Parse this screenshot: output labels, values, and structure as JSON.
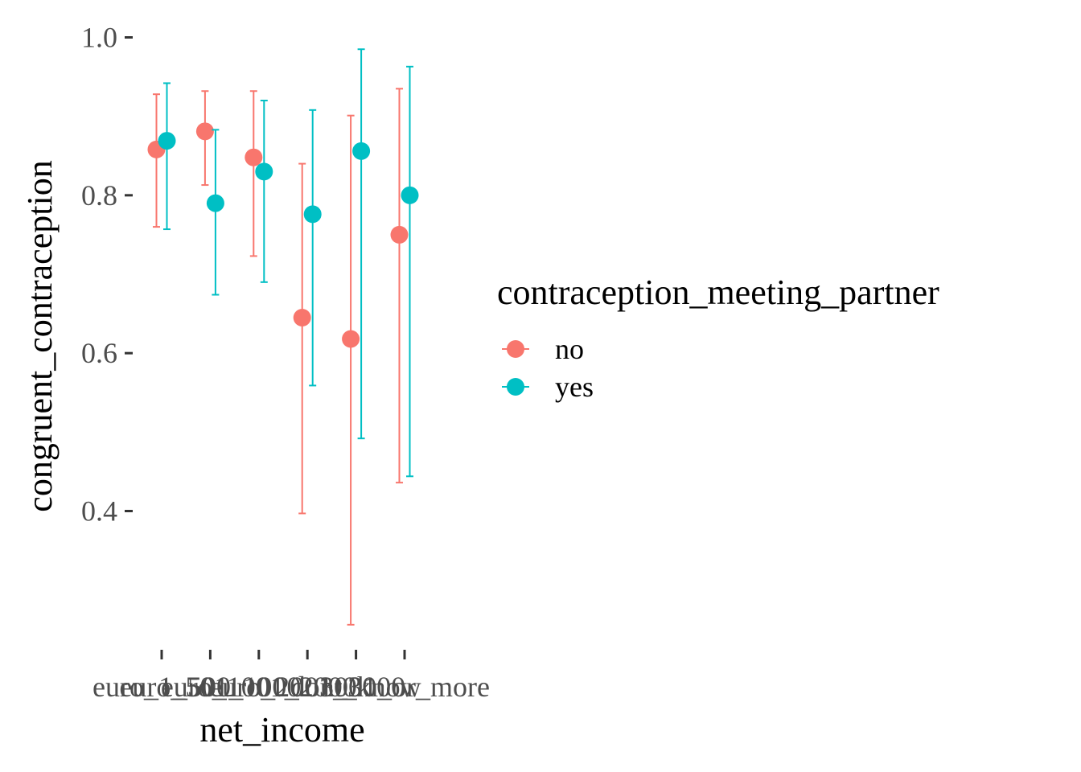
{
  "chart_data": {
    "type": "scatter",
    "xlabel": "net_income",
    "ylabel": "congruent_contraception",
    "categories": [
      "euro_1_500",
      "euro_501_1000",
      "euro_1001_2000",
      "euro_2001_3000",
      "dont_know",
      "3001_or_more"
    ],
    "y_ticks": [
      "0.4",
      "0.6",
      "0.8",
      "1.0"
    ],
    "y_tick_values": [
      0.4,
      0.6,
      0.8,
      1.0
    ],
    "ylim": [
      0.22,
      1.02
    ],
    "legend": {
      "title": "contraception_meeting_partner",
      "position": "right"
    },
    "series": [
      {
        "name": "no",
        "color": "#F8766D",
        "values": [
          0.858,
          0.881,
          0.848,
          0.645,
          0.618,
          0.75
        ],
        "lower": [
          0.76,
          0.813,
          0.723,
          0.397,
          0.256,
          0.436
        ],
        "upper": [
          0.928,
          0.932,
          0.932,
          0.84,
          0.901,
          0.935
        ]
      },
      {
        "name": "yes",
        "color": "#00BFC4",
        "values": [
          0.869,
          0.79,
          0.83,
          0.776,
          0.856,
          0.8
        ],
        "lower": [
          0.757,
          0.674,
          0.69,
          0.559,
          0.492,
          0.444
        ],
        "upper": [
          0.942,
          0.883,
          0.92,
          0.908,
          0.985,
          0.963
        ]
      }
    ]
  }
}
